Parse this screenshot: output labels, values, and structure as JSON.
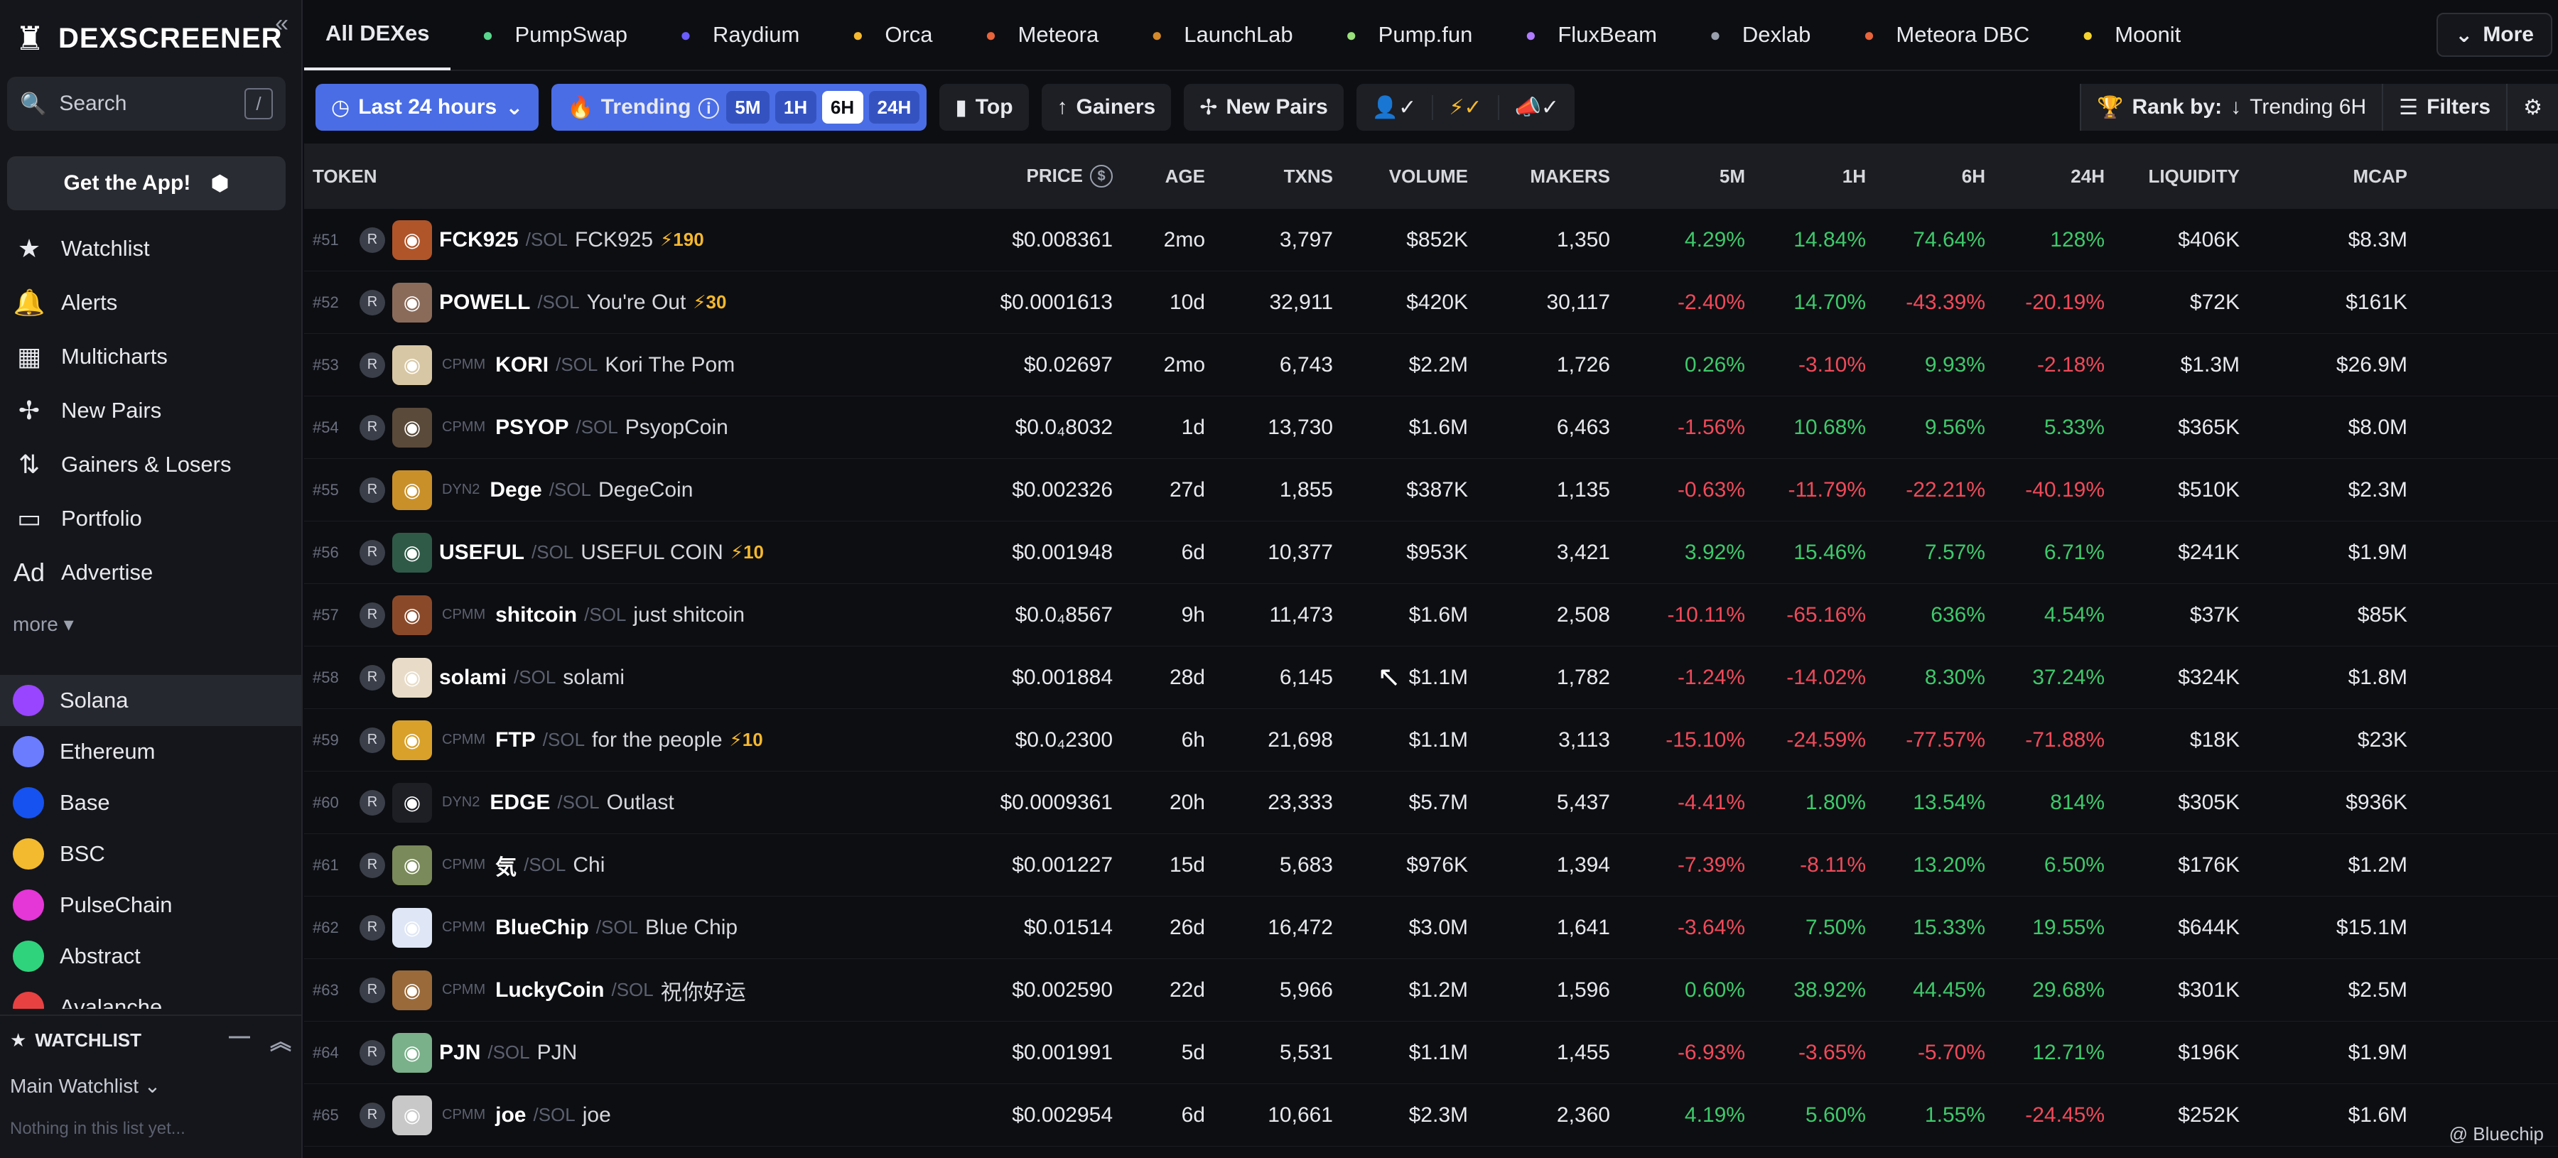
{
  "brand": {
    "name": "DEXSCREENER"
  },
  "sidebar": {
    "search_label": "Search",
    "search_shortcut": "/",
    "get_app": "Get the App!",
    "nav": [
      {
        "label": "Watchlist",
        "icon": "star-icon"
      },
      {
        "label": "Alerts",
        "icon": "bell-icon"
      },
      {
        "label": "Multicharts",
        "icon": "grid-icon"
      },
      {
        "label": "New Pairs",
        "icon": "sprout-icon"
      },
      {
        "label": "Gainers & Losers",
        "icon": "arrows-icon"
      },
      {
        "label": "Portfolio",
        "icon": "wallet-icon"
      },
      {
        "label": "Advertise",
        "icon": "ad-icon"
      }
    ],
    "more": "more",
    "chains": [
      {
        "label": "Solana",
        "color": "#9945ff"
      },
      {
        "label": "Ethereum",
        "color": "#6b7cff"
      },
      {
        "label": "Base",
        "color": "#1652f0"
      },
      {
        "label": "BSC",
        "color": "#f3ba2f"
      },
      {
        "label": "PulseChain",
        "color": "#e536d8"
      },
      {
        "label": "Abstract",
        "color": "#2fd37c"
      },
      {
        "label": "Avalanche",
        "color": "#e84142"
      }
    ],
    "watchlist_header": "WATCHLIST",
    "watchlist_select": "Main Watchlist",
    "watchlist_empty": "Nothing in this list yet..."
  },
  "topnav": {
    "dexes": [
      "All DEXes",
      "PumpSwap",
      "Raydium",
      "Orca",
      "Meteora",
      "LaunchLab",
      "Pump.fun",
      "FluxBeam",
      "Dexlab",
      "Meteora DBC",
      "Moonit"
    ],
    "more": "More"
  },
  "filters": {
    "period": "Last 24 hours",
    "trending": "Trending",
    "segments": [
      "5M",
      "1H",
      "6H",
      "24H"
    ],
    "active_segment": "6H",
    "top": "Top",
    "gainers": "Gainers",
    "new_pairs": "New Pairs",
    "rank_by_label": "Rank by:",
    "rank_by_value": "Trending 6H",
    "filters_label": "Filters"
  },
  "table": {
    "headers": [
      "TOKEN",
      "PRICE",
      "AGE",
      "TXNS",
      "VOLUME",
      "MAKERS",
      "5M",
      "1H",
      "6H",
      "24H",
      "LIQUIDITY",
      "MCAP"
    ],
    "rows": [
      {
        "rank": "#51",
        "dex": "",
        "symbol": "FCK925",
        "name": "FCK925",
        "boost": "⚡190",
        "price": "$0.008361",
        "age": "2mo",
        "txns": "3,797",
        "volume": "$852K",
        "makers": "1,350",
        "m5": "4.29%",
        "h1": "14.84%",
        "h6": "74.64%",
        "h24": "128%",
        "liquidity": "$406K",
        "mcap": "$8.3M",
        "color": "#b0552a"
      },
      {
        "rank": "#52",
        "dex": "",
        "symbol": "POWELL",
        "name": "You're Out",
        "boost": "⚡30",
        "price": "$0.0001613",
        "age": "10d",
        "txns": "32,911",
        "volume": "$420K",
        "makers": "30,117",
        "m5": "-2.40%",
        "h1": "14.70%",
        "h6": "-43.39%",
        "h24": "-20.19%",
        "liquidity": "$72K",
        "mcap": "$161K",
        "color": "#8a6b5a"
      },
      {
        "rank": "#53",
        "dex": "CPMM",
        "symbol": "KORI",
        "name": "Kori The Pom",
        "boost": "",
        "price": "$0.02697",
        "age": "2mo",
        "txns": "6,743",
        "volume": "$2.2M",
        "makers": "1,726",
        "m5": "0.26%",
        "h1": "-3.10%",
        "h6": "9.93%",
        "h24": "-2.18%",
        "liquidity": "$1.3M",
        "mcap": "$26.9M",
        "color": "#d8c7a4"
      },
      {
        "rank": "#54",
        "dex": "CPMM",
        "symbol": "PSYOP",
        "name": "PsyopCoin",
        "boost": "",
        "price": "$0.0₄8032",
        "age": "1d",
        "txns": "13,730",
        "volume": "$1.6M",
        "makers": "6,463",
        "m5": "-1.56%",
        "h1": "10.68%",
        "h6": "9.56%",
        "h24": "5.33%",
        "liquidity": "$365K",
        "mcap": "$8.0M",
        "color": "#5a4a3a"
      },
      {
        "rank": "#55",
        "dex": "DYN2",
        "symbol": "Dege",
        "name": "DegeCoin",
        "boost": "",
        "price": "$0.002326",
        "age": "27d",
        "txns": "1,855",
        "volume": "$387K",
        "makers": "1,135",
        "m5": "-0.63%",
        "h1": "-11.79%",
        "h6": "-22.21%",
        "h24": "-40.19%",
        "liquidity": "$510K",
        "mcap": "$2.3M",
        "color": "#c9902a"
      },
      {
        "rank": "#56",
        "dex": "",
        "symbol": "USEFUL",
        "name": "USEFUL COIN",
        "boost": "⚡10",
        "price": "$0.001948",
        "age": "6d",
        "txns": "10,377",
        "volume": "$953K",
        "makers": "3,421",
        "m5": "3.92%",
        "h1": "15.46%",
        "h6": "7.57%",
        "h24": "6.71%",
        "liquidity": "$241K",
        "mcap": "$1.9M",
        "color": "#2f5a48"
      },
      {
        "rank": "#57",
        "dex": "CPMM",
        "symbol": "shitcoin",
        "name": "just shitcoin",
        "boost": "",
        "price": "$0.0₄8567",
        "age": "9h",
        "txns": "11,473",
        "volume": "$1.6M",
        "makers": "2,508",
        "m5": "-10.11%",
        "h1": "-65.16%",
        "h6": "636%",
        "h24": "4.54%",
        "liquidity": "$37K",
        "mcap": "$85K",
        "color": "#8a4a2a"
      },
      {
        "rank": "#58",
        "dex": "",
        "symbol": "solami",
        "name": "solami",
        "boost": "",
        "price": "$0.001884",
        "age": "28d",
        "txns": "6,145",
        "volume": "$1.1M",
        "makers": "1,782",
        "m5": "-1.24%",
        "h1": "-14.02%",
        "h6": "8.30%",
        "h24": "37.24%",
        "liquidity": "$324K",
        "mcap": "$1.8M",
        "color": "#e8dcc8"
      },
      {
        "rank": "#59",
        "dex": "CPMM",
        "symbol": "FTP",
        "name": "for the people",
        "boost": "⚡10",
        "price": "$0.0₄2300",
        "age": "6h",
        "txns": "21,698",
        "volume": "$1.1M",
        "makers": "3,113",
        "m5": "-15.10%",
        "h1": "-24.59%",
        "h6": "-77.57%",
        "h24": "-71.88%",
        "liquidity": "$18K",
        "mcap": "$23K",
        "color": "#d9a12a"
      },
      {
        "rank": "#60",
        "dex": "DYN2",
        "symbol": "EDGE",
        "name": "Outlast",
        "boost": "",
        "price": "$0.0009361",
        "age": "20h",
        "txns": "23,333",
        "volume": "$5.7M",
        "makers": "5,437",
        "m5": "-4.41%",
        "h1": "1.80%",
        "h6": "13.54%",
        "h24": "814%",
        "liquidity": "$305K",
        "mcap": "$936K",
        "color": "#1d1f25"
      },
      {
        "rank": "#61",
        "dex": "CPMM",
        "symbol": "気",
        "name": "Chi",
        "boost": "",
        "price": "$0.001227",
        "age": "15d",
        "txns": "5,683",
        "volume": "$976K",
        "makers": "1,394",
        "m5": "-7.39%",
        "h1": "-8.11%",
        "h6": "13.20%",
        "h24": "6.50%",
        "liquidity": "$176K",
        "mcap": "$1.2M",
        "color": "#7a8a5a"
      },
      {
        "rank": "#62",
        "dex": "CPMM",
        "symbol": "BlueChip",
        "name": "Blue Chip",
        "boost": "",
        "price": "$0.01514",
        "age": "26d",
        "txns": "16,472",
        "volume": "$3.0M",
        "makers": "1,641",
        "m5": "-3.64%",
        "h1": "7.50%",
        "h6": "15.33%",
        "h24": "19.55%",
        "liquidity": "$644K",
        "mcap": "$15.1M",
        "color": "#dfe6f5"
      },
      {
        "rank": "#63",
        "dex": "CPMM",
        "symbol": "LuckyCoin",
        "name": "祝你好运",
        "boost": "",
        "price": "$0.002590",
        "age": "22d",
        "txns": "5,966",
        "volume": "$1.2M",
        "makers": "1,596",
        "m5": "0.60%",
        "h1": "38.92%",
        "h6": "44.45%",
        "h24": "29.68%",
        "liquidity": "$301K",
        "mcap": "$2.5M",
        "color": "#9a6a3a"
      },
      {
        "rank": "#64",
        "dex": "",
        "symbol": "PJN",
        "name": "PJN",
        "boost": "",
        "price": "$0.001991",
        "age": "5d",
        "txns": "5,531",
        "volume": "$1.1M",
        "makers": "1,455",
        "m5": "-6.93%",
        "h1": "-3.65%",
        "h6": "-5.70%",
        "h24": "12.71%",
        "liquidity": "$196K",
        "mcap": "$1.9M",
        "color": "#7ab08a"
      },
      {
        "rank": "#65",
        "dex": "CPMM",
        "symbol": "joe",
        "name": "joe",
        "boost": "",
        "price": "$0.002954",
        "age": "6d",
        "txns": "10,661",
        "volume": "$2.3M",
        "makers": "2,360",
        "m5": "4.19%",
        "h1": "5.60%",
        "h6": "1.55%",
        "h24": "-24.45%",
        "liquidity": "$252K",
        "mcap": "$1.6M",
        "color": "#c8c8c8"
      }
    ],
    "quote": "/SOL"
  },
  "watermark": "@ Bluechip"
}
